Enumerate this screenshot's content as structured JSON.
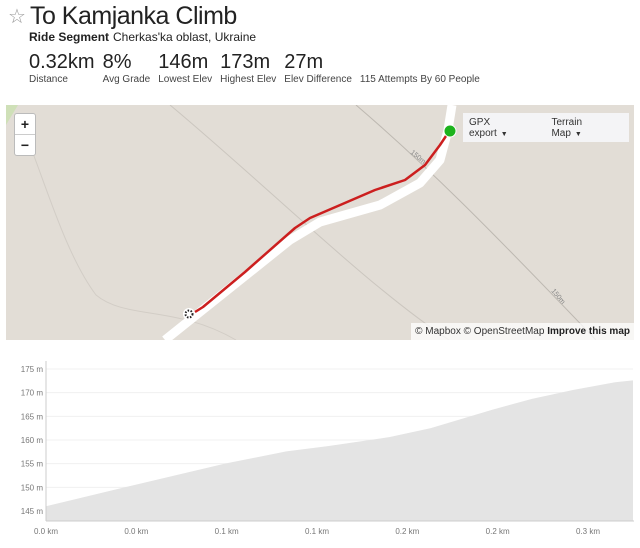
{
  "header": {
    "title": "To Kamjanka Climb",
    "type": "Ride Segment",
    "location": "Cherkas'ka oblast, Ukraine"
  },
  "stats": [
    {
      "value": "0.32km",
      "label": "Distance"
    },
    {
      "value": "8%",
      "label": "Avg Grade"
    },
    {
      "value": "146m",
      "label": "Lowest Elev"
    },
    {
      "value": "173m",
      "label": "Highest Elev"
    },
    {
      "value": "27m",
      "label": "Elev Difference"
    }
  ],
  "attempts": "115 Attempts By 60 People",
  "map": {
    "zoom_in": "+",
    "zoom_out": "−",
    "gpx_export": "GPX export",
    "terrain_map": "Terrain Map",
    "contour_label": "150m",
    "attribution_mapbox": "© Mapbox",
    "attribution_osm": "© OpenStreetMap",
    "improve": "Improve this map",
    "route_color": "#cc1f1f",
    "start_color": "#1db31d"
  },
  "chart_data": {
    "type": "area",
    "title": "",
    "xlabel": "",
    "ylabel": "",
    "x": [
      0,
      0.049,
      0.099,
      0.133,
      0.156,
      0.19,
      0.213,
      0.247,
      0.269,
      0.292,
      0.315,
      0.326
    ],
    "y": [
      146,
      150.5,
      155,
      157.6,
      158.7,
      160.6,
      162.5,
      166.4,
      168.7,
      170.6,
      172.2,
      172.6
    ],
    "xlim": [
      0,
      0.326
    ],
    "ylim": [
      143,
      176
    ],
    "yticks": [
      145,
      150,
      155,
      160,
      165,
      170,
      175
    ],
    "ytick_labels": [
      "145 m",
      "150 m",
      "155 m",
      "160 m",
      "165 m",
      "170 m",
      "175 m"
    ],
    "xticks": [
      0,
      0.05,
      0.1,
      0.15,
      0.2,
      0.25,
      0.3
    ],
    "xtick_labels": [
      "0.0 km",
      "0.0 km",
      "0.1 km",
      "0.1 km",
      "0.2 km",
      "0.2 km",
      "0.3 km"
    ],
    "fill_color": "#e4e4e4",
    "grid": true
  }
}
